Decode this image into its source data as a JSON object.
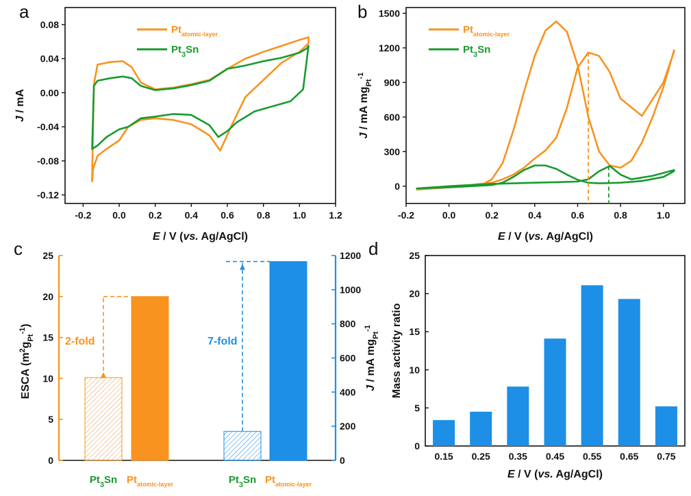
{
  "colors": {
    "orange": "#f7931e",
    "green": "#189a2e",
    "blue": "#1d8fe6",
    "axis": "#111111"
  },
  "chart_data": [
    {
      "panel": "a",
      "type": "line",
      "title": "",
      "xlabel": {
        "var": "E",
        "rest": " / V (",
        "italic": "vs.",
        "tail": " Ag/AgCl)"
      },
      "ylabel": {
        "var": "J",
        "rest": " / mA"
      },
      "xlim": [
        -0.3,
        1.2
      ],
      "ylim": [
        -0.13,
        0.1
      ],
      "xticks": [
        -0.2,
        0.0,
        0.2,
        0.4,
        0.6,
        0.8,
        1.0,
        1.2
      ],
      "xtick_labels": [
        "-0.2",
        "0.0",
        "0.2",
        "0.4",
        "0.6",
        "0.8",
        "1.0",
        "1.2"
      ],
      "yticks": [
        0.08,
        0.04,
        0.0,
        -0.04,
        -0.08,
        -0.12
      ],
      "ytick_labels": [
        "0.08",
        "0.04",
        "0.00",
        "-0.04",
        "-0.08",
        "-0.12"
      ],
      "legend": [
        {
          "main": "Pt",
          "sub": "atomic-layer",
          "color": "orange"
        },
        {
          "main": "Pt",
          "sub": "3",
          "tail": "Sn",
          "color": "green"
        }
      ],
      "series": [
        {
          "name": "Pt atomic-layer",
          "color": "orange",
          "x": [
            -0.15,
            -0.14,
            -0.12,
            -0.05,
            0.02,
            0.07,
            0.12,
            0.2,
            0.3,
            0.4,
            0.5,
            0.6,
            0.7,
            0.8,
            0.9,
            1.0,
            1.05,
            1.05,
            1.0,
            0.9,
            0.8,
            0.7,
            0.62,
            0.56,
            0.5,
            0.4,
            0.3,
            0.2,
            0.12,
            0.05,
            0.0,
            -0.07,
            -0.12,
            -0.145,
            -0.15,
            -0.15
          ],
          "y": [
            -0.1,
            0.01,
            0.033,
            0.036,
            0.037,
            0.03,
            0.012,
            0.004,
            0.006,
            0.01,
            0.015,
            0.028,
            0.04,
            0.048,
            0.055,
            0.062,
            0.065,
            0.058,
            0.048,
            0.035,
            0.015,
            -0.005,
            -0.04,
            -0.068,
            -0.05,
            -0.037,
            -0.032,
            -0.03,
            -0.032,
            -0.04,
            -0.056,
            -0.066,
            -0.074,
            -0.09,
            -0.104,
            -0.1
          ]
        },
        {
          "name": "Pt3Sn",
          "color": "green",
          "x": [
            -0.15,
            -0.14,
            -0.12,
            -0.05,
            0.02,
            0.07,
            0.12,
            0.2,
            0.3,
            0.4,
            0.5,
            0.6,
            0.7,
            0.8,
            0.9,
            1.0,
            1.04,
            1.05,
            1.02,
            0.95,
            0.85,
            0.75,
            0.65,
            0.6,
            0.55,
            0.5,
            0.4,
            0.3,
            0.2,
            0.12,
            0.05,
            0.0,
            -0.07,
            -0.12,
            -0.15
          ],
          "y": [
            -0.066,
            0.008,
            0.014,
            0.017,
            0.019,
            0.017,
            0.008,
            0.003,
            0.005,
            0.009,
            0.014,
            0.028,
            0.032,
            0.037,
            0.041,
            0.047,
            0.052,
            0.055,
            0.004,
            -0.01,
            -0.016,
            -0.022,
            -0.035,
            -0.045,
            -0.052,
            -0.038,
            -0.026,
            -0.025,
            -0.028,
            -0.03,
            -0.04,
            -0.043,
            -0.052,
            -0.062,
            -0.066
          ]
        }
      ]
    },
    {
      "panel": "b",
      "type": "line",
      "title": "",
      "xlabel": {
        "var": "E",
        "rest": " / V (",
        "italic": "vs.",
        "tail": " Ag/AgCl)"
      },
      "ylabel": {
        "var": "J",
        "rest": " / mA mg",
        "sub": "Pt",
        "sup": "-1"
      },
      "xlim": [
        -0.2,
        1.1
      ],
      "ylim": [
        -150,
        1550
      ],
      "xticks": [
        -0.2,
        0.0,
        0.2,
        0.4,
        0.6,
        0.8,
        1.0
      ],
      "xtick_labels": [
        "-0.2",
        "0.0",
        "0.2",
        "0.4",
        "0.6",
        "0.8",
        "1.0"
      ],
      "yticks": [
        1500,
        1200,
        900,
        600,
        300,
        0
      ],
      "ytick_labels": [
        "1500",
        "1200",
        "900",
        "600",
        "300",
        "0"
      ],
      "legend": [
        {
          "main": "Pt",
          "sub": "atomic-layer",
          "color": "orange"
        },
        {
          "main": "Pt",
          "sub": "3",
          "tail": "Sn",
          "color": "green"
        }
      ],
      "markers": [
        {
          "x": 0.65,
          "y": 1160,
          "color": "orange"
        },
        {
          "x": 0.745,
          "y": 175,
          "color": "green"
        }
      ],
      "series": [
        {
          "name": "Pt atomic-layer",
          "color": "orange",
          "x": [
            -0.15,
            0.0,
            0.1,
            0.15,
            0.2,
            0.25,
            0.3,
            0.35,
            0.4,
            0.45,
            0.5,
            0.55,
            0.6,
            0.65,
            0.7,
            0.75,
            0.8,
            0.85,
            0.9,
            0.95,
            1.0,
            1.05,
            1.05,
            1.0,
            0.9,
            0.8,
            0.75,
            0.7,
            0.65,
            0.6,
            0.55,
            0.5,
            0.45,
            0.4,
            0.35,
            0.3,
            0.25,
            0.2,
            0.1,
            0.0,
            -0.15
          ],
          "y": [
            -30,
            -10,
            0,
            10,
            60,
            200,
            480,
            820,
            1130,
            1350,
            1430,
            1340,
            1050,
            600,
            300,
            180,
            160,
            220,
            380,
            600,
            860,
            1180,
            1170,
            900,
            610,
            760,
            990,
            1130,
            1160,
            1030,
            680,
            420,
            310,
            240,
            160,
            100,
            60,
            30,
            10,
            0,
            -30
          ]
        },
        {
          "name": "Pt3Sn",
          "color": "green",
          "x": [
            -0.15,
            0.0,
            0.1,
            0.2,
            0.25,
            0.3,
            0.35,
            0.4,
            0.45,
            0.5,
            0.55,
            0.6,
            0.65,
            0.7,
            0.8,
            0.9,
            1.0,
            1.05,
            1.05,
            0.95,
            0.85,
            0.8,
            0.75,
            0.7,
            0.65,
            0.6,
            0.5,
            0.4,
            0.2,
            0.0,
            -0.15
          ],
          "y": [
            -20,
            -10,
            0,
            10,
            30,
            80,
            140,
            180,
            180,
            150,
            100,
            55,
            30,
            25,
            30,
            45,
            80,
            130,
            140,
            90,
            60,
            100,
            175,
            130,
            60,
            40,
            35,
            30,
            20,
            0,
            -20
          ]
        }
      ]
    },
    {
      "panel": "c",
      "type": "bar",
      "title": "",
      "ylabel_left": {
        "text": "ESCA (m",
        "sup": "2",
        "mid": "g",
        "sub": "Pt",
        "sup2": "-1",
        "tail": ")"
      },
      "ylabel_right": {
        "var": "J",
        "rest": " / mA mg",
        "sub": "Pt",
        "sup": "-1"
      },
      "ylim_left": [
        0,
        25
      ],
      "ylim_right": [
        0,
        1200
      ],
      "yticks_left": [
        25,
        20,
        15,
        10,
        5,
        0
      ],
      "ytick_labels_left": [
        "25",
        "20",
        "15",
        "10",
        "5",
        "0"
      ],
      "yticks_right": [
        1200,
        1000,
        800,
        600,
        400,
        200,
        0
      ],
      "ytick_labels_right": [
        "1200",
        "1000",
        "800",
        "600",
        "400",
        "200",
        "0"
      ],
      "left_bars": [
        {
          "label": {
            "main": "Pt",
            "sub": "3",
            "tail": "Sn"
          },
          "value": 10.1,
          "color": "orange",
          "hatched": true,
          "label_color": "green"
        },
        {
          "label": {
            "main": "Pt",
            "sub": "atomic-layer"
          },
          "value": 20.0,
          "color": "orange",
          "hatched": false,
          "label_color": "orange"
        }
      ],
      "right_bars": [
        {
          "label": {
            "main": "Pt",
            "sub": "3",
            "tail": "Sn"
          },
          "value": 170,
          "color": "blue",
          "hatched": true,
          "label_color": "green"
        },
        {
          "label": {
            "main": "Pt",
            "sub": "atomic-layer"
          },
          "value": 1165,
          "color": "blue",
          "hatched": false,
          "label_color": "orange"
        }
      ],
      "annotations": [
        {
          "text": "2-fold",
          "color": "orange"
        },
        {
          "text": "7-fold",
          "color": "blue"
        }
      ]
    },
    {
      "panel": "d",
      "type": "bar",
      "title": "",
      "xlabel": {
        "var": "E",
        "rest": " / V (",
        "italic": "vs.",
        "tail": " Ag/AgCl)"
      },
      "ylabel": "Mass activity ratio",
      "ylim": [
        0,
        25
      ],
      "yticks": [
        25,
        20,
        15,
        10,
        5,
        0
      ],
      "ytick_labels": [
        "25",
        "20",
        "15",
        "10",
        "5",
        "0"
      ],
      "categories": [
        "0.15",
        "0.25",
        "0.35",
        "0.45",
        "0.55",
        "0.65",
        "0.75"
      ],
      "values": [
        3.4,
        4.5,
        7.8,
        14.1,
        21.1,
        19.3,
        5.2
      ],
      "color": "blue"
    }
  ]
}
